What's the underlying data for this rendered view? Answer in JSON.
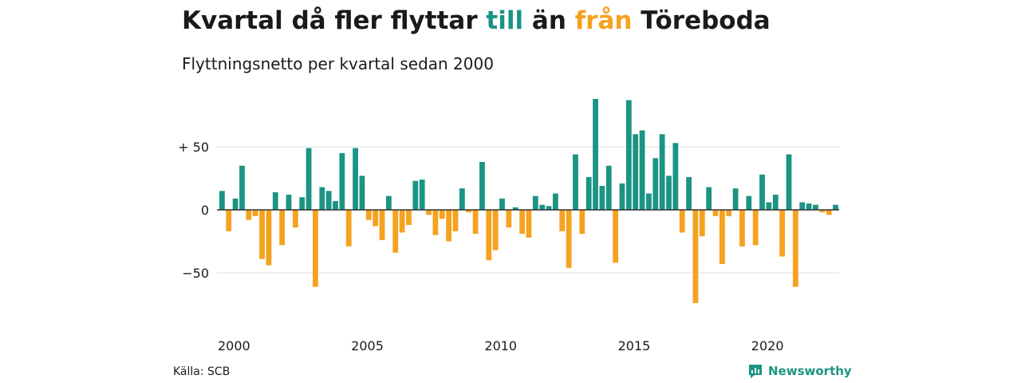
{
  "title": {
    "part1": "Kvartal då fler flyttar ",
    "till": "till",
    "part2": " än ",
    "fran": "från",
    "part3": " Töreboda"
  },
  "subtitle": "Flyttningsnetto per kvartal sedan 2000",
  "source": "Källa: SCB",
  "brand": "Newsworthy",
  "colors": {
    "positive": "#1b9484",
    "negative": "#f5a21f",
    "text": "#1a1a1a",
    "grid": "#dddddd"
  },
  "chart_data": {
    "type": "bar",
    "title": "Kvartal då fler flyttar till än från Töreboda",
    "subtitle": "Flyttningsnetto per kvartal sedan 2000",
    "xlabel": "",
    "ylabel": "",
    "ylim": [
      -80,
      90
    ],
    "yticks": [
      50,
      0,
      -50
    ],
    "ytick_labels": [
      "+ 50",
      "0",
      "−50"
    ],
    "xticks": [
      2000,
      2005,
      2010,
      2015,
      2020
    ],
    "start_year": 2000,
    "values": [
      15,
      -17,
      9,
      35,
      -8,
      -5,
      -39,
      -44,
      14,
      -28,
      12,
      -14,
      10,
      49,
      -61,
      18,
      15,
      7,
      45,
      -29,
      49,
      27,
      -8,
      -13,
      -24,
      11,
      -34,
      -18,
      -12,
      23,
      24,
      -4,
      -20,
      -7,
      -25,
      -17,
      17,
      -2,
      -19,
      38,
      -40,
      -32,
      9,
      -14,
      2,
      -19,
      -22,
      11,
      4,
      3,
      13,
      -17,
      -46,
      44,
      -19,
      26,
      88,
      19,
      35,
      -42,
      21,
      87,
      60,
      63,
      13,
      41,
      60,
      27,
      53,
      -18,
      26,
      -74,
      -21,
      18,
      -5,
      -43,
      -5,
      17,
      -29,
      11,
      -28,
      28,
      6,
      12,
      -37,
      44,
      -61,
      6,
      5,
      4,
      -2,
      -4,
      4
    ]
  }
}
